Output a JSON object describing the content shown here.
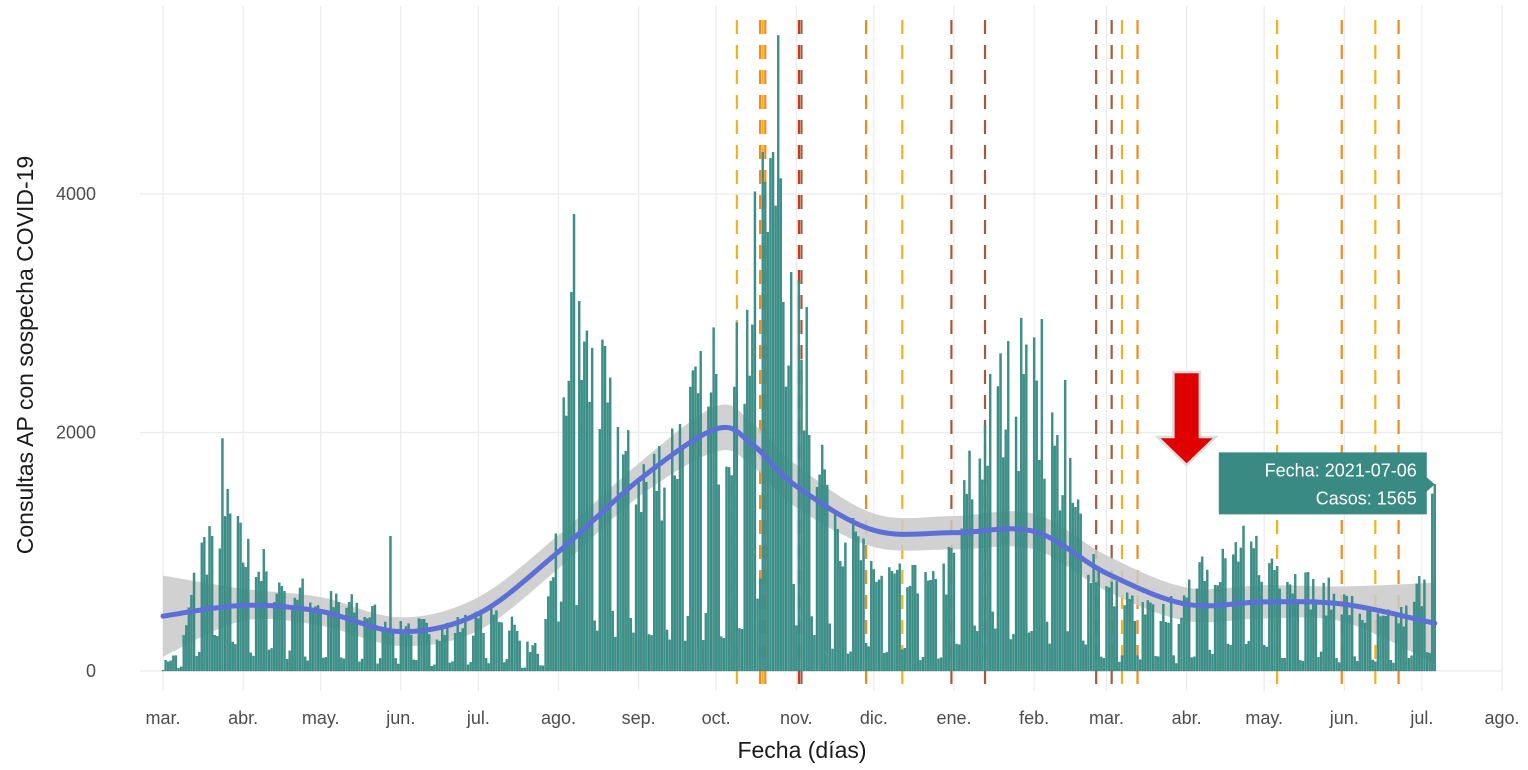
{
  "colors": {
    "bar": "#3a9189",
    "bar_stroke": "#2a7a72",
    "smooth_line": "#5b6fd6",
    "confidence_band": "#c9c9c9",
    "grid": "#ebebeb",
    "tooltip_bg": "#3a8a84",
    "arrow": "#e00000",
    "vline_palette": [
      "#f2b21c",
      "#f08a1c",
      "#a35a3c",
      "#c8391e"
    ]
  },
  "tooltip": {
    "date_line": "Fecha: 2021-07-06",
    "cases_line": "Casos: 1565"
  },
  "chart_data": {
    "type": "bar",
    "xlabel": "Fecha (días)",
    "ylabel": "Consultas AP con sospecha COVID-19",
    "xlim": [
      "2020-03-01",
      "2021-08-01"
    ],
    "ylim": [
      -200,
      5500
    ],
    "x_ticks": [
      {
        "date": "2020-03-01",
        "label": "mar."
      },
      {
        "date": "2020-04-01",
        "label": "abr."
      },
      {
        "date": "2020-05-01",
        "label": "may."
      },
      {
        "date": "2020-06-01",
        "label": "jun."
      },
      {
        "date": "2020-07-01",
        "label": "jul."
      },
      {
        "date": "2020-08-01",
        "label": "ago."
      },
      {
        "date": "2020-09-01",
        "label": "sep."
      },
      {
        "date": "2020-10-01",
        "label": "oct."
      },
      {
        "date": "2020-11-01",
        "label": "nov."
      },
      {
        "date": "2020-12-01",
        "label": "dic."
      },
      {
        "date": "2021-01-01",
        "label": "ene."
      },
      {
        "date": "2021-02-01",
        "label": "feb."
      },
      {
        "date": "2021-03-01",
        "label": "mar."
      },
      {
        "date": "2021-04-01",
        "label": "abr."
      },
      {
        "date": "2021-05-01",
        "label": "may."
      },
      {
        "date": "2021-06-01",
        "label": "jun."
      },
      {
        "date": "2021-07-01",
        "label": "jul."
      },
      {
        "date": "2021-08-01",
        "label": "ago."
      }
    ],
    "y_ticks": [
      0,
      2000,
      4000
    ],
    "bar_profile_anchors": [
      [
        "2020-03-01",
        60
      ],
      [
        "2020-03-08",
        150
      ],
      [
        "2020-03-15",
        900
      ],
      [
        "2020-03-24",
        1300
      ],
      [
        "2020-04-01",
        950
      ],
      [
        "2020-04-15",
        700
      ],
      [
        "2020-05-01",
        550
      ],
      [
        "2020-05-15",
        500
      ],
      [
        "2020-06-01",
        380
      ],
      [
        "2020-06-15",
        330
      ],
      [
        "2020-07-01",
        400
      ],
      [
        "2020-07-12",
        480
      ],
      [
        "2020-07-18",
        200
      ],
      [
        "2020-07-26",
        180
      ],
      [
        "2020-07-30",
        800
      ],
      [
        "2020-08-02",
        2300
      ],
      [
        "2020-08-08",
        2700
      ],
      [
        "2020-08-15",
        2300
      ],
      [
        "2020-08-25",
        1800
      ],
      [
        "2020-09-05",
        1500
      ],
      [
        "2020-09-15",
        1800
      ],
      [
        "2020-09-25",
        2100
      ],
      [
        "2020-10-01",
        2000
      ],
      [
        "2020-10-08",
        2200
      ],
      [
        "2020-10-15",
        2900
      ],
      [
        "2020-10-20",
        3900
      ],
      [
        "2020-10-25",
        3400
      ],
      [
        "2020-10-30",
        2800
      ],
      [
        "2020-11-05",
        2400
      ],
      [
        "2020-11-12",
        1600
      ],
      [
        "2020-11-20",
        1100
      ],
      [
        "2020-12-01",
        800
      ],
      [
        "2020-12-15",
        700
      ],
      [
        "2020-12-25",
        650
      ],
      [
        "2021-01-01",
        900
      ],
      [
        "2021-01-10",
        1800
      ],
      [
        "2021-01-20",
        2200
      ],
      [
        "2021-02-01",
        2200
      ],
      [
        "2021-02-10",
        1700
      ],
      [
        "2021-02-20",
        1100
      ],
      [
        "2021-03-01",
        650
      ],
      [
        "2021-03-15",
        480
      ],
      [
        "2021-04-01",
        500
      ],
      [
        "2021-04-05",
        900
      ],
      [
        "2021-04-20",
        950
      ],
      [
        "2021-05-01",
        950
      ],
      [
        "2021-05-15",
        700
      ],
      [
        "2021-06-01",
        550
      ],
      [
        "2021-06-15",
        380
      ],
      [
        "2021-06-25",
        450
      ],
      [
        "2021-07-01",
        700
      ],
      [
        "2021-07-06",
        1565
      ]
    ],
    "bar_peaks": [
      {
        "date": "2020-03-24",
        "value": 1950
      },
      {
        "date": "2020-05-28",
        "value": 1130
      },
      {
        "date": "2020-08-07",
        "value": 3830
      },
      {
        "date": "2020-08-09",
        "value": 3100
      },
      {
        "date": "2020-09-30",
        "value": 2880
      },
      {
        "date": "2020-10-20",
        "value": 4100
      },
      {
        "date": "2020-10-22",
        "value": 4300
      },
      {
        "date": "2020-10-23",
        "value": 4350
      },
      {
        "date": "2020-10-24",
        "value": 3900
      },
      {
        "date": "2020-10-25",
        "value": 5330
      },
      {
        "date": "2020-10-26",
        "value": 4130
      },
      {
        "date": "2020-11-05",
        "value": 3050
      },
      {
        "date": "2021-01-27",
        "value": 2960
      },
      {
        "date": "2021-02-04",
        "value": 2950
      },
      {
        "date": "2021-02-13",
        "value": 2440
      },
      {
        "date": "2021-07-06",
        "value": 1565
      }
    ],
    "series": [
      {
        "type": "bar",
        "start": "2020-03-01",
        "end": "2021-07-06"
      },
      {
        "type": "line",
        "points": [
          [
            "2020-03-01",
            460
          ],
          [
            "2020-04-01",
            550
          ],
          [
            "2020-05-01",
            500
          ],
          [
            "2020-06-01",
            330
          ],
          [
            "2020-07-01",
            480
          ],
          [
            "2020-08-01",
            1000
          ],
          [
            "2020-09-01",
            1600
          ],
          [
            "2020-10-01",
            2030
          ],
          [
            "2020-10-15",
            1900
          ],
          [
            "2020-11-01",
            1550
          ],
          [
            "2020-12-01",
            1180
          ],
          [
            "2021-01-01",
            1160
          ],
          [
            "2021-02-01",
            1170
          ],
          [
            "2021-03-01",
            820
          ],
          [
            "2021-04-01",
            560
          ],
          [
            "2021-05-01",
            580
          ],
          [
            "2021-06-01",
            560
          ],
          [
            "2021-07-06",
            400
          ]
        ]
      },
      {
        "type": "area",
        "upper": [
          [
            "2020-03-01",
            800
          ],
          [
            "2020-04-01",
            690
          ],
          [
            "2020-05-01",
            620
          ],
          [
            "2020-06-01",
            450
          ],
          [
            "2020-07-01",
            620
          ],
          [
            "2020-08-01",
            1140
          ],
          [
            "2020-09-01",
            1740
          ],
          [
            "2020-10-01",
            2220
          ],
          [
            "2020-10-15",
            2080
          ],
          [
            "2020-11-01",
            1730
          ],
          [
            "2020-12-01",
            1320
          ],
          [
            "2021-01-01",
            1300
          ],
          [
            "2021-02-01",
            1320
          ],
          [
            "2021-03-01",
            970
          ],
          [
            "2021-04-01",
            700
          ],
          [
            "2021-05-01",
            720
          ],
          [
            "2021-06-01",
            710
          ],
          [
            "2021-07-06",
            740
          ]
        ],
        "lower": [
          [
            "2020-03-01",
            120
          ],
          [
            "2020-04-01",
            420
          ],
          [
            "2020-05-01",
            380
          ],
          [
            "2020-06-01",
            210
          ],
          [
            "2020-07-01",
            340
          ],
          [
            "2020-08-01",
            860
          ],
          [
            "2020-09-01",
            1460
          ],
          [
            "2020-10-01",
            1840
          ],
          [
            "2020-10-15",
            1720
          ],
          [
            "2020-11-01",
            1370
          ],
          [
            "2020-12-01",
            1040
          ],
          [
            "2021-01-01",
            1020
          ],
          [
            "2021-02-01",
            1020
          ],
          [
            "2021-03-01",
            670
          ],
          [
            "2021-04-01",
            420
          ],
          [
            "2021-05-01",
            440
          ],
          [
            "2021-06-01",
            410
          ],
          [
            "2021-07-06",
            60
          ]
        ]
      }
    ],
    "reference_lines": [
      {
        "date": "2020-10-09",
        "color_index": 0
      },
      {
        "date": "2020-10-18",
        "color_index": 1
      },
      {
        "date": "2020-10-19",
        "color_index": 0
      },
      {
        "date": "2020-10-20",
        "color_index": 1
      },
      {
        "date": "2020-11-02",
        "color_index": 3
      },
      {
        "date": "2020-11-03",
        "color_index": 2
      },
      {
        "date": "2020-11-28",
        "color_index": 1
      },
      {
        "date": "2020-12-12",
        "color_index": 0
      },
      {
        "date": "2020-12-31",
        "color_index": 2
      },
      {
        "date": "2021-01-13",
        "color_index": 2
      },
      {
        "date": "2021-02-25",
        "color_index": 2
      },
      {
        "date": "2021-03-03",
        "color_index": 2
      },
      {
        "date": "2021-03-07",
        "color_index": 0
      },
      {
        "date": "2021-03-13",
        "color_index": 1
      },
      {
        "date": "2021-05-06",
        "color_index": 0
      },
      {
        "date": "2021-05-31",
        "color_index": 1
      },
      {
        "date": "2021-06-13",
        "color_index": 0
      },
      {
        "date": "2021-06-22",
        "color_index": 1
      }
    ],
    "grid": true,
    "annotation": {
      "arrow_date": "2021-04-01",
      "arrow_value": 1700,
      "tooltip_date": "2021-07-06",
      "tooltip_value": 1565
    }
  }
}
